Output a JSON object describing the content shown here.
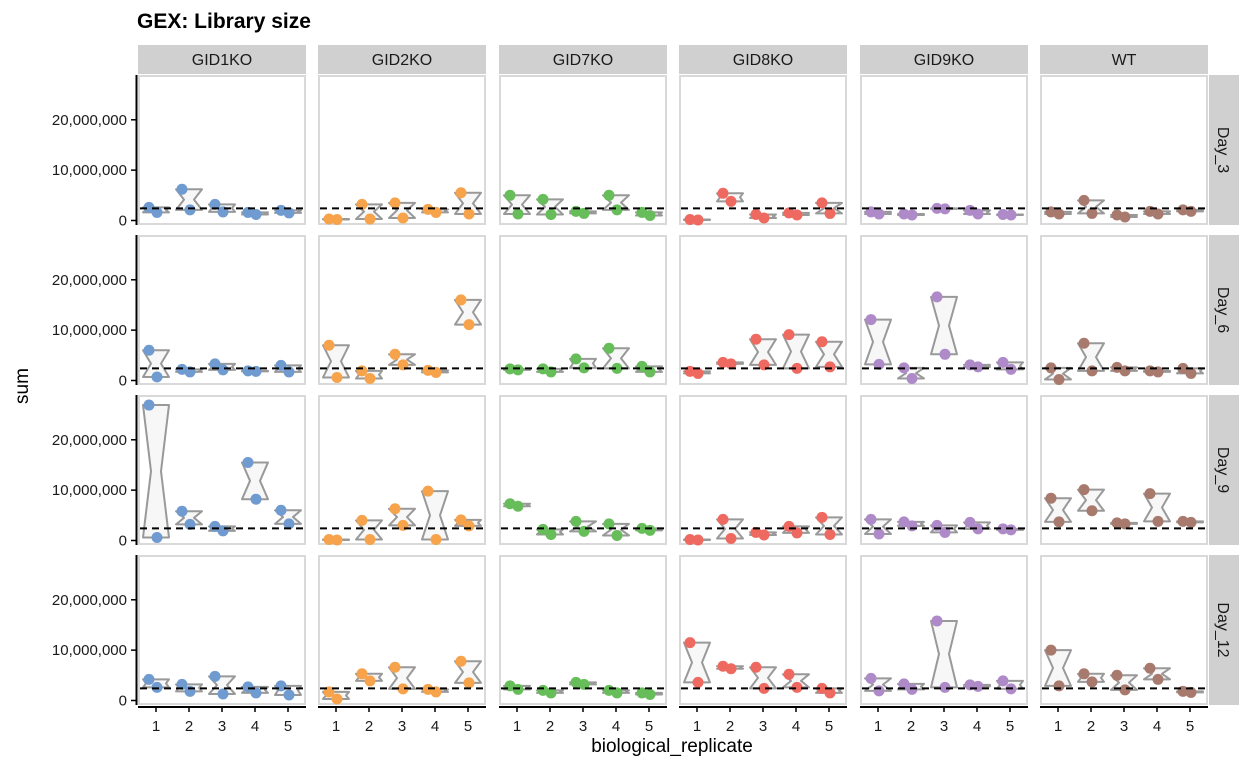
{
  "chart_data": {
    "type": "scatter",
    "title": "GEX: Library size",
    "xlabel": "biological_replicate",
    "ylabel": "sum",
    "columns": [
      "GID1KO",
      "GID2KO",
      "GID7KO",
      "GID8KO",
      "GID9KO",
      "WT"
    ],
    "rows": [
      "Day_3",
      "Day_6",
      "Day_9",
      "Day_12"
    ],
    "x_ticks": [
      "1",
      "2",
      "3",
      "4",
      "5"
    ],
    "y_ticks": [
      0,
      10000000,
      20000000
    ],
    "y_tick_labels": [
      "0",
      "10,000,000",
      "20,000,000"
    ],
    "ylim": [
      -500000,
      28500000
    ],
    "reference_line": 2400000,
    "grid": false,
    "colors": {
      "GID1KO": "#6f9bd0",
      "GID2KO": "#f7a34b",
      "GID7KO": "#67bd5a",
      "GID8KO": "#ee6a61",
      "GID9KO": "#ae8ac9",
      "WT": "#a87a6e",
      "violin": "#999999",
      "strip": "#d0d0d0",
      "panel_border": "#d9d9d9"
    },
    "data": {
      "GID1KO": {
        "Day_3": [
          [
            2600000,
            1600000
          ],
          [
            6200000,
            2100000
          ],
          [
            3200000,
            1700000
          ],
          [
            1600000,
            1200000
          ],
          [
            2000000,
            1500000
          ]
        ],
        "Day_6": [
          [
            6000000,
            700000
          ],
          [
            2200000,
            1700000
          ],
          [
            3300000,
            2100000
          ],
          [
            1900000,
            1800000
          ],
          [
            3000000,
            1700000
          ]
        ],
        "Day_9": [
          [
            26900000,
            600000
          ],
          [
            5800000,
            3200000
          ],
          [
            2800000,
            1900000
          ],
          [
            15500000,
            8200000
          ],
          [
            6000000,
            3300000
          ]
        ],
        "Day_12": [
          [
            4200000,
            2600000
          ],
          [
            3200000,
            1800000
          ],
          [
            4800000,
            1300000
          ],
          [
            2700000,
            1500000
          ],
          [
            2900000,
            1100000
          ]
        ]
      },
      "GID2KO": {
        "Day_3": [
          [
            300000,
            200000
          ],
          [
            3200000,
            300000
          ],
          [
            3500000,
            500000
          ],
          [
            2200000,
            1600000
          ],
          [
            5500000,
            1300000
          ]
        ],
        "Day_6": [
          [
            7000000,
            600000
          ],
          [
            1900000,
            400000
          ],
          [
            5200000,
            3100000
          ],
          [
            2000000,
            1600000
          ],
          [
            16000000,
            11100000
          ]
        ],
        "Day_9": [
          [
            200000,
            100000
          ],
          [
            4000000,
            200000
          ],
          [
            6300000,
            3000000
          ],
          [
            9800000,
            200000
          ],
          [
            4100000,
            2900000
          ]
        ],
        "Day_12": [
          [
            1700000,
            300000
          ],
          [
            5300000,
            3900000
          ],
          [
            6600000,
            2300000
          ],
          [
            2200000,
            1700000
          ],
          [
            7800000,
            3500000
          ]
        ]
      },
      "GID7KO": {
        "Day_3": [
          [
            5000000,
            1300000
          ],
          [
            4200000,
            1200000
          ],
          [
            1800000,
            1400000
          ],
          [
            5000000,
            2100000
          ],
          [
            1600000,
            1000000
          ]
        ],
        "Day_6": [
          [
            2300000,
            2100000
          ],
          [
            2300000,
            1700000
          ],
          [
            4300000,
            2500000
          ],
          [
            6400000,
            2400000
          ],
          [
            2800000,
            1700000
          ]
        ],
        "Day_9": [
          [
            7300000,
            6800000
          ],
          [
            2200000,
            1200000
          ],
          [
            3800000,
            1800000
          ],
          [
            3300000,
            1000000
          ],
          [
            2400000,
            2000000
          ]
        ],
        "Day_12": [
          [
            2900000,
            2200000
          ],
          [
            2000000,
            1500000
          ],
          [
            3600000,
            3200000
          ],
          [
            2000000,
            1500000
          ],
          [
            1500000,
            1200000
          ]
        ]
      },
      "GID8KO": {
        "Day_3": [
          [
            200000,
            100000
          ],
          [
            5400000,
            3800000
          ],
          [
            1200000,
            500000
          ],
          [
            1500000,
            1100000
          ],
          [
            3500000,
            1400000
          ]
        ],
        "Day_6": [
          [
            1800000,
            1400000
          ],
          [
            3600000,
            3300000
          ],
          [
            8200000,
            3100000
          ],
          [
            9100000,
            2400000
          ],
          [
            7700000,
            2700000
          ]
        ],
        "Day_9": [
          [
            200000,
            100000
          ],
          [
            4200000,
            400000
          ],
          [
            1600000,
            1100000
          ],
          [
            2800000,
            1500000
          ],
          [
            4600000,
            1200000
          ]
        ],
        "Day_12": [
          [
            11500000,
            3600000
          ],
          [
            6800000,
            6300000
          ],
          [
            6600000,
            2400000
          ],
          [
            5200000,
            2600000
          ],
          [
            2400000,
            1500000
          ]
        ]
      },
      "GID9KO": {
        "Day_3": [
          [
            1700000,
            1300000
          ],
          [
            1300000,
            1100000
          ],
          [
            2400000,
            2300000
          ],
          [
            2000000,
            1300000
          ],
          [
            1200000,
            1100000
          ]
        ],
        "Day_6": [
          [
            12100000,
            3200000
          ],
          [
            2500000,
            400000
          ],
          [
            16600000,
            5200000
          ],
          [
            3100000,
            2700000
          ],
          [
            3600000,
            2200000
          ]
        ],
        "Day_9": [
          [
            4200000,
            1300000
          ],
          [
            3700000,
            2900000
          ],
          [
            3000000,
            1600000
          ],
          [
            3600000,
            2300000
          ],
          [
            2300000,
            2100000
          ]
        ],
        "Day_12": [
          [
            4400000,
            1900000
          ],
          [
            3300000,
            2200000
          ],
          [
            15800000,
            2600000
          ],
          [
            3100000,
            2800000
          ],
          [
            3900000,
            2300000
          ]
        ]
      },
      "WT": {
        "Day_3": [
          [
            1700000,
            1300000
          ],
          [
            4000000,
            1400000
          ],
          [
            1100000,
            700000
          ],
          [
            1800000,
            1300000
          ],
          [
            2100000,
            1800000
          ]
        ],
        "Day_6": [
          [
            2500000,
            200000
          ],
          [
            7400000,
            1900000
          ],
          [
            2600000,
            1900000
          ],
          [
            1900000,
            1700000
          ],
          [
            2400000,
            1400000
          ]
        ],
        "Day_9": [
          [
            8400000,
            3700000
          ],
          [
            10100000,
            5900000
          ],
          [
            3500000,
            3300000
          ],
          [
            9300000,
            3800000
          ],
          [
            3800000,
            3600000
          ]
        ],
        "Day_12": [
          [
            10000000,
            2900000
          ],
          [
            5300000,
            3700000
          ],
          [
            5000000,
            2100000
          ],
          [
            6400000,
            4200000
          ],
          [
            1800000,
            1600000
          ]
        ]
      }
    }
  }
}
